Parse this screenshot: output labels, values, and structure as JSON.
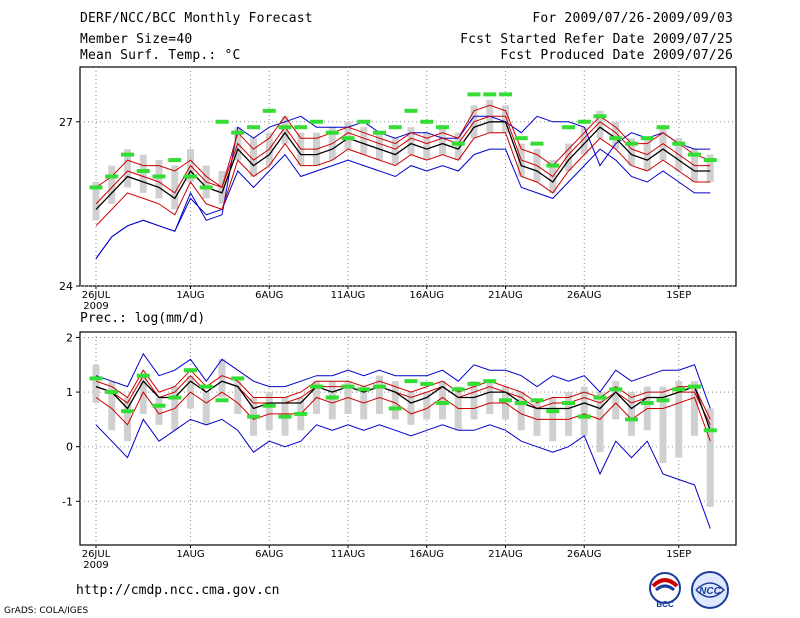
{
  "header": {
    "title": "DERF/NCC/BCC Monthly Forecast",
    "member_size": "Member Size=40",
    "variable": "Mean Surf. Temp.: °C",
    "period": "For 2009/07/26-2009/09/03",
    "started": "Fcst Started Refer Date 2009/07/25",
    "produced": "Fcst Produced Date 2009/07/26"
  },
  "footer": {
    "url": "http://cmdp.ncc.cma.gov.cn",
    "credit": "GrADS: COLA/IGES"
  },
  "logos": {
    "bcc": "BCC",
    "ncc": "NCC"
  },
  "colors": {
    "spread": "#0000cc",
    "percentile": "#cc0000",
    "mean": "#000000",
    "obs": "#33dd33",
    "box": "#d0d0d0",
    "grid": "#888888"
  },
  "chart_data": [
    {
      "type": "line",
      "title": "Mean Surf. Temp.: °C",
      "x_labels": [
        "26JUL",
        "1AUG",
        "6AUG",
        "11AUG",
        "16AUG",
        "21AUG",
        "26AUG",
        "1SEP"
      ],
      "x_label_days": [
        0,
        6,
        11,
        16,
        21,
        26,
        31,
        37
      ],
      "year_label": "2009",
      "ylim": [
        24,
        28.0
      ],
      "yticks": [
        "24",
        "27"
      ],
      "ytick_values": [
        24,
        27
      ],
      "days": 40,
      "series": [
        {
          "name": "max",
          "values": [
            24.5,
            24.9,
            25.1,
            25.2,
            25.1,
            25.0,
            25.7,
            25.2,
            25.3,
            26.9,
            26.7,
            26.9,
            27.0,
            27.1,
            26.9,
            26.9,
            26.9,
            27.0,
            26.8,
            26.7,
            26.8,
            26.8,
            26.7,
            26.7,
            27.1,
            27.1,
            27.0,
            26.8,
            27.1,
            27.0,
            27.0,
            26.9,
            26.2,
            26.6,
            26.8,
            26.7,
            26.8,
            26.6,
            26.5,
            26.5
          ]
        },
        {
          "name": "p90",
          "values": [
            25.8,
            26.0,
            26.3,
            26.2,
            26.2,
            26.1,
            26.3,
            26.0,
            25.8,
            26.8,
            26.5,
            26.7,
            27.1,
            26.7,
            26.7,
            26.8,
            26.9,
            26.8,
            26.7,
            26.6,
            26.8,
            26.7,
            26.8,
            26.7,
            27.2,
            27.3,
            27.2,
            26.5,
            26.4,
            26.2,
            26.5,
            26.8,
            27.1,
            26.9,
            26.6,
            26.6,
            26.8,
            26.6,
            26.4,
            26.3
          ]
        },
        {
          "name": "p75",
          "values": [
            25.5,
            25.8,
            26.1,
            26.0,
            25.9,
            25.7,
            26.2,
            25.9,
            25.8,
            26.6,
            26.3,
            26.5,
            26.9,
            26.5,
            26.5,
            26.6,
            26.8,
            26.7,
            26.6,
            26.5,
            26.7,
            26.6,
            26.7,
            26.6,
            27.0,
            27.1,
            27.1,
            26.3,
            26.2,
            26.0,
            26.4,
            26.7,
            27.0,
            26.8,
            26.5,
            26.4,
            26.6,
            26.4,
            26.2,
            26.2
          ]
        },
        {
          "name": "mean",
          "values": [
            25.4,
            25.7,
            26.0,
            25.9,
            25.8,
            25.6,
            26.1,
            25.8,
            25.7,
            26.5,
            26.2,
            26.4,
            26.8,
            26.4,
            26.4,
            26.5,
            26.7,
            26.6,
            26.5,
            26.4,
            26.6,
            26.5,
            26.6,
            26.5,
            26.9,
            27.0,
            27.0,
            26.2,
            26.1,
            25.9,
            26.3,
            26.6,
            26.9,
            26.7,
            26.4,
            26.3,
            26.5,
            26.3,
            26.1,
            26.1
          ]
        },
        {
          "name": "p25",
          "values": [
            25.3,
            25.6,
            25.9,
            25.8,
            25.7,
            25.5,
            26.0,
            25.7,
            25.6,
            26.4,
            26.1,
            26.3,
            26.7,
            26.3,
            26.3,
            26.4,
            26.6,
            26.5,
            26.4,
            26.3,
            26.5,
            26.4,
            26.5,
            26.4,
            26.8,
            26.9,
            26.9,
            26.1,
            26.0,
            25.8,
            26.2,
            26.5,
            26.8,
            26.6,
            26.3,
            26.2,
            26.4,
            26.2,
            26.0,
            26.0
          ]
        },
        {
          "name": "p10",
          "values": [
            25.1,
            25.4,
            25.7,
            25.6,
            25.5,
            25.3,
            25.9,
            25.5,
            25.4,
            26.3,
            26.0,
            26.2,
            26.6,
            26.2,
            26.2,
            26.3,
            26.5,
            26.4,
            26.3,
            26.2,
            26.4,
            26.3,
            26.4,
            26.3,
            26.7,
            26.8,
            26.8,
            26.0,
            25.9,
            25.7,
            26.1,
            26.4,
            26.7,
            26.5,
            26.2,
            26.1,
            26.3,
            26.1,
            25.9,
            25.9
          ]
        },
        {
          "name": "min",
          "values": [
            24.5,
            24.9,
            25.1,
            25.2,
            25.1,
            25.0,
            25.6,
            25.3,
            25.4,
            26.1,
            25.8,
            26.1,
            26.4,
            26.0,
            26.1,
            26.2,
            26.3,
            26.2,
            26.1,
            26.0,
            26.2,
            26.1,
            26.2,
            26.1,
            26.4,
            26.5,
            26.5,
            25.8,
            25.7,
            25.6,
            25.9,
            26.2,
            26.5,
            26.3,
            26.0,
            25.9,
            26.1,
            25.9,
            25.7,
            25.7
          ]
        },
        {
          "name": "box_high",
          "values": [
            25.9,
            26.2,
            26.5,
            26.4,
            26.3,
            26.2,
            26.5,
            26.2,
            26.1,
            26.9,
            26.7,
            26.8,
            27.1,
            26.8,
            26.8,
            26.9,
            27.0,
            26.9,
            26.8,
            26.7,
            26.9,
            26.8,
            26.9,
            26.8,
            27.3,
            27.4,
            27.3,
            26.6,
            26.5,
            26.3,
            26.6,
            26.9,
            27.2,
            27.0,
            26.7,
            26.7,
            26.9,
            26.7,
            26.5,
            26.4
          ]
        },
        {
          "name": "box_low",
          "values": [
            25.2,
            25.5,
            25.8,
            25.7,
            25.6,
            25.4,
            25.9,
            25.6,
            25.5,
            26.3,
            26.0,
            26.2,
            26.6,
            26.2,
            26.2,
            26.3,
            26.5,
            26.4,
            26.3,
            26.2,
            26.4,
            26.3,
            26.4,
            26.3,
            26.7,
            26.8,
            26.8,
            26.0,
            25.9,
            25.7,
            26.1,
            26.4,
            26.7,
            26.5,
            26.2,
            26.1,
            26.3,
            26.1,
            25.9,
            25.9
          ]
        },
        {
          "name": "obs",
          "values": [
            25.8,
            26.0,
            26.4,
            26.1,
            26.0,
            26.3,
            26.0,
            25.8,
            27.0,
            26.8,
            26.9,
            27.2,
            26.9,
            26.9,
            27.0,
            26.8,
            26.7,
            27.0,
            26.8,
            26.9,
            27.2,
            27.0,
            26.9,
            26.6,
            27.5,
            27.5,
            27.5,
            26.7,
            26.6,
            26.2,
            26.9,
            27.0,
            27.1,
            26.7,
            26.6,
            26.7,
            26.9,
            26.6,
            26.4,
            26.3
          ]
        }
      ]
    },
    {
      "type": "line",
      "title": "Prec.: log(mm/d)",
      "x_labels": [
        "26JUL",
        "1AUG",
        "6AUG",
        "11AUG",
        "16AUG",
        "21AUG",
        "26AUG",
        "1SEP"
      ],
      "x_label_days": [
        0,
        6,
        11,
        16,
        21,
        26,
        31,
        37
      ],
      "year_label": "2009",
      "ylim": [
        -1.8,
        2.1
      ],
      "yticks": [
        "-1",
        "0",
        "1",
        "2"
      ],
      "ytick_values": [
        -1,
        0,
        1,
        2
      ],
      "days": 40,
      "series": [
        {
          "name": "max",
          "values": [
            1.3,
            1.2,
            1.1,
            1.7,
            1.3,
            1.4,
            1.6,
            1.2,
            1.6,
            1.4,
            1.2,
            1.1,
            1.1,
            1.2,
            1.3,
            1.3,
            1.4,
            1.3,
            1.4,
            1.3,
            1.3,
            1.3,
            1.4,
            1.2,
            1.5,
            1.4,
            1.4,
            1.3,
            1.1,
            1.3,
            1.2,
            1.3,
            1.0,
            1.4,
            1.2,
            1.3,
            1.4,
            1.4,
            1.5,
            0.7
          ]
        },
        {
          "name": "p90",
          "values": [
            1.2,
            1.1,
            0.9,
            1.4,
            1.0,
            1.1,
            1.4,
            1.1,
            1.3,
            1.2,
            0.9,
            0.9,
            0.9,
            1.0,
            1.2,
            1.2,
            1.2,
            1.1,
            1.2,
            1.1,
            1.0,
            1.1,
            1.2,
            1.0,
            1.1,
            1.2,
            1.1,
            1.0,
            0.8,
            0.9,
            0.9,
            1.0,
            0.9,
            1.1,
            0.9,
            1.0,
            1.0,
            1.1,
            1.1,
            0.5
          ]
        },
        {
          "name": "p75",
          "values": [
            1.1,
            1.0,
            0.8,
            1.3,
            0.9,
            1.0,
            1.3,
            1.0,
            1.2,
            1.1,
            0.8,
            0.8,
            0.8,
            0.9,
            1.1,
            1.1,
            1.1,
            1.0,
            1.1,
            1.0,
            0.9,
            1.0,
            1.1,
            0.9,
            1.0,
            1.1,
            1.0,
            0.9,
            0.7,
            0.8,
            0.8,
            0.9,
            0.8,
            1.0,
            0.8,
            0.9,
            0.9,
            1.0,
            1.0,
            0.4
          ]
        },
        {
          "name": "mean",
          "values": [
            1.1,
            1.0,
            0.7,
            1.2,
            0.9,
            0.9,
            1.2,
            1.0,
            1.2,
            1.1,
            0.7,
            0.8,
            0.8,
            0.8,
            1.1,
            1.0,
            1.1,
            1.0,
            1.1,
            1.0,
            0.8,
            0.9,
            1.1,
            0.9,
            0.9,
            1.0,
            1.0,
            0.8,
            0.7,
            0.7,
            0.7,
            0.8,
            0.7,
            1.0,
            0.7,
            0.9,
            0.9,
            1.0,
            1.1,
            0.3
          ]
        },
        {
          "name": "p25",
          "values": [
            1.0,
            0.8,
            0.6,
            1.1,
            0.7,
            0.8,
            1.1,
            0.9,
            1.1,
            0.9,
            0.6,
            0.7,
            0.7,
            0.7,
            1.0,
            0.9,
            1.0,
            0.9,
            1.0,
            0.9,
            0.7,
            0.8,
            1.0,
            0.8,
            0.8,
            0.9,
            0.9,
            0.7,
            0.6,
            0.6,
            0.6,
            0.7,
            0.6,
            0.9,
            0.6,
            0.8,
            0.8,
            0.9,
            1.0,
            0.2
          ]
        },
        {
          "name": "p10",
          "values": [
            0.9,
            0.7,
            0.4,
            1.0,
            0.6,
            0.7,
            1.0,
            0.8,
            1.0,
            0.8,
            0.5,
            0.6,
            0.6,
            0.6,
            0.9,
            0.8,
            0.9,
            0.8,
            0.9,
            0.8,
            0.6,
            0.7,
            0.9,
            0.7,
            0.7,
            0.8,
            0.8,
            0.6,
            0.5,
            0.5,
            0.5,
            0.6,
            0.5,
            0.8,
            0.5,
            0.7,
            0.7,
            0.8,
            0.9,
            0.1
          ]
        },
        {
          "name": "min",
          "values": [
            0.4,
            0.1,
            -0.2,
            0.5,
            0.1,
            0.3,
            0.5,
            0.4,
            0.5,
            0.3,
            -0.1,
            0.1,
            0.0,
            0.1,
            0.4,
            0.3,
            0.4,
            0.3,
            0.4,
            0.3,
            0.2,
            0.3,
            0.4,
            0.3,
            0.3,
            0.4,
            0.3,
            0.1,
            0.0,
            -0.1,
            0.0,
            0.2,
            -0.5,
            0.1,
            -0.2,
            0.1,
            -0.5,
            -0.6,
            -0.7,
            -1.5
          ]
        },
        {
          "name": "box_high",
          "values": [
            1.5,
            1.2,
            0.9,
            1.3,
            0.9,
            1.1,
            1.3,
            1.0,
            1.6,
            1.2,
            0.9,
            1.0,
            0.9,
            0.9,
            1.2,
            1.2,
            1.2,
            1.1,
            1.3,
            1.2,
            1.0,
            1.0,
            1.2,
            1.1,
            1.2,
            1.2,
            1.1,
            1.0,
            0.8,
            0.9,
            1.0,
            1.1,
            1.0,
            1.2,
            1.0,
            1.1,
            1.1,
            1.2,
            1.2,
            0.7
          ]
        },
        {
          "name": "box_low",
          "values": [
            0.8,
            0.3,
            0.1,
            0.6,
            0.4,
            0.3,
            0.7,
            0.4,
            0.9,
            0.6,
            0.2,
            0.3,
            0.2,
            0.3,
            0.6,
            0.5,
            0.6,
            0.5,
            0.6,
            0.5,
            0.4,
            0.5,
            0.5,
            0.3,
            0.5,
            0.6,
            0.5,
            0.3,
            0.2,
            0.1,
            0.2,
            0.2,
            -0.1,
            0.5,
            0.2,
            0.3,
            -0.3,
            -0.2,
            0.2,
            -1.1
          ]
        },
        {
          "name": "obs",
          "values": [
            1.25,
            1.0,
            0.65,
            1.3,
            0.75,
            0.9,
            1.4,
            1.1,
            0.85,
            1.25,
            0.55,
            0.75,
            0.55,
            0.6,
            1.1,
            0.9,
            1.1,
            1.05,
            1.1,
            0.7,
            1.2,
            1.15,
            0.8,
            1.05,
            1.15,
            1.2,
            0.85,
            0.8,
            0.85,
            0.65,
            0.8,
            0.55,
            0.9,
            1.05,
            0.5,
            0.8,
            0.85,
            1.05,
            1.1,
            0.3
          ]
        }
      ]
    }
  ]
}
